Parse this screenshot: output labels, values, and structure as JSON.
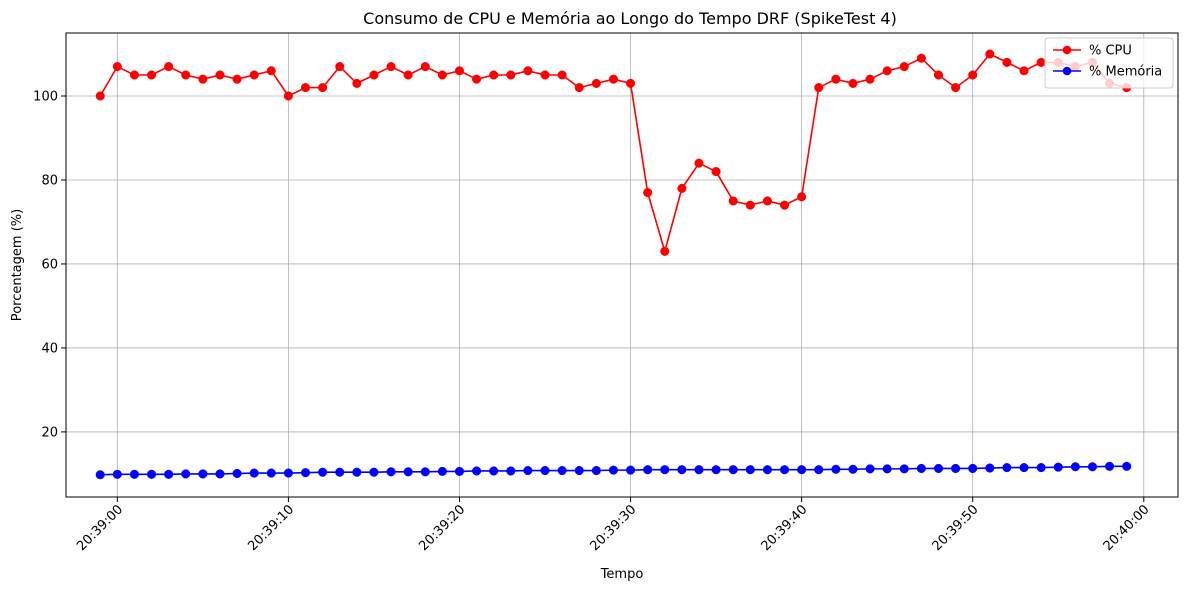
{
  "chart_data": {
    "type": "line",
    "title": "Consumo de CPU e Memória ao Longo do Tempo DRF (SpikeTest 4)",
    "xlabel": "Tempo",
    "ylabel": "Porcentagem (%)",
    "x_ticks": [
      "20:39:00",
      "20:39:10",
      "20:39:20",
      "20:39:30",
      "20:39:40",
      "20:39:50",
      "20:40:00"
    ],
    "y_ticks": [
      20,
      40,
      60,
      80,
      100
    ],
    "ylim": [
      4.5,
      115
    ],
    "xlim": [
      "20:38:57",
      "20:40:02"
    ],
    "grid": true,
    "legend_position": "top-right",
    "x": [
      "20:38:59",
      "20:39:00",
      "20:39:01",
      "20:39:02",
      "20:39:03",
      "20:39:04",
      "20:39:05",
      "20:39:06",
      "20:39:07",
      "20:39:08",
      "20:39:09",
      "20:39:10",
      "20:39:11",
      "20:39:12",
      "20:39:13",
      "20:39:14",
      "20:39:15",
      "20:39:16",
      "20:39:17",
      "20:39:18",
      "20:39:19",
      "20:39:20",
      "20:39:21",
      "20:39:22",
      "20:39:23",
      "20:39:24",
      "20:39:25",
      "20:39:26",
      "20:39:27",
      "20:39:28",
      "20:39:29",
      "20:39:30",
      "20:39:31",
      "20:39:32",
      "20:39:33",
      "20:39:34",
      "20:39:35",
      "20:39:36",
      "20:39:37",
      "20:39:38",
      "20:39:39",
      "20:39:40",
      "20:39:41",
      "20:39:42",
      "20:39:43",
      "20:39:44",
      "20:39:45",
      "20:39:46",
      "20:39:47",
      "20:39:48",
      "20:39:49",
      "20:39:50",
      "20:39:51",
      "20:39:52",
      "20:39:53",
      "20:39:54",
      "20:39:55",
      "20:39:56",
      "20:39:57",
      "20:39:58",
      "20:39:59"
    ],
    "series": [
      {
        "name": "% CPU",
        "color": "#ff0000",
        "values": [
          100,
          107,
          105,
          105,
          107,
          105,
          104,
          105,
          104,
          105,
          106,
          100,
          102,
          102,
          107,
          103,
          105,
          107,
          105,
          107,
          105,
          106,
          104,
          105,
          105,
          106,
          105,
          105,
          102,
          103,
          104,
          103,
          77,
          63,
          78,
          84,
          82,
          75,
          74,
          75,
          74,
          76,
          102,
          104,
          103,
          104,
          106,
          107,
          109,
          105,
          102,
          105,
          110,
          108,
          106,
          108,
          108,
          107,
          108,
          103,
          102
        ]
      },
      {
        "name": "% Memória",
        "color": "#0000ff",
        "values": [
          9.8,
          9.9,
          9.9,
          9.9,
          9.9,
          10.0,
          10.0,
          10.0,
          10.1,
          10.2,
          10.2,
          10.2,
          10.3,
          10.4,
          10.4,
          10.4,
          10.4,
          10.5,
          10.5,
          10.5,
          10.6,
          10.6,
          10.7,
          10.7,
          10.7,
          10.8,
          10.8,
          10.8,
          10.8,
          10.8,
          10.9,
          10.9,
          11.0,
          11.0,
          11.0,
          11.0,
          11.0,
          11.0,
          11.0,
          11.0,
          11.0,
          11.0,
          11.0,
          11.1,
          11.1,
          11.2,
          11.2,
          11.2,
          11.3,
          11.3,
          11.3,
          11.3,
          11.4,
          11.5,
          11.5,
          11.5,
          11.6,
          11.7,
          11.7,
          11.8,
          11.8
        ]
      }
    ]
  }
}
